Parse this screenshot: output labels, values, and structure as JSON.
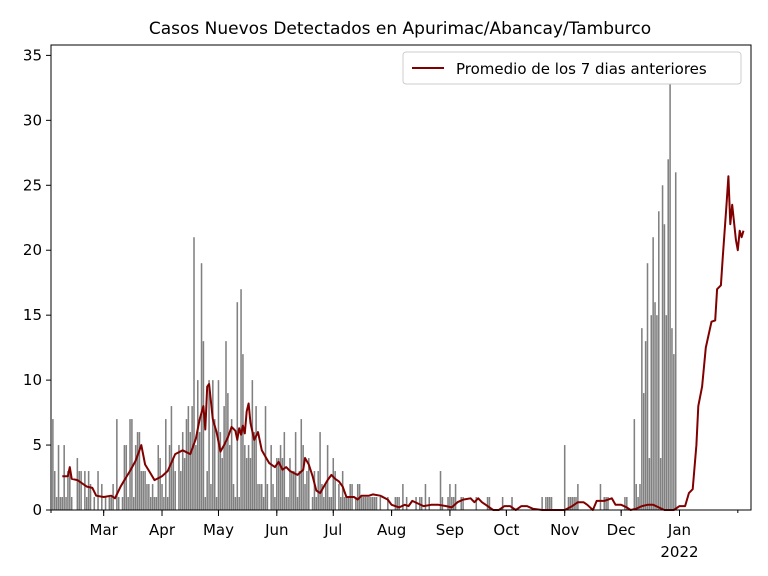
{
  "chart_data": {
    "type": "bar",
    "title": "Casos Nuevos Detectados en Apurimac/Abancay/Tamburco",
    "xlabel": "",
    "ylabel": "",
    "x_range": [
      "2021-02-01",
      "2022-02-08"
    ],
    "ylim": [
      0,
      35.8
    ],
    "y_ticks": [
      0,
      5,
      10,
      15,
      20,
      25,
      30,
      35
    ],
    "x_ticks": [
      {
        "label": "Mar",
        "date": "2021-03-01"
      },
      {
        "label": "Apr",
        "date": "2021-04-01"
      },
      {
        "label": "May",
        "date": "2021-05-01"
      },
      {
        "label": "Jun",
        "date": "2021-06-01"
      },
      {
        "label": "Jul",
        "date": "2021-07-01"
      },
      {
        "label": "Aug",
        "date": "2021-08-01"
      },
      {
        "label": "Sep",
        "date": "2021-09-01"
      },
      {
        "label": "Oct",
        "date": "2021-10-01"
      },
      {
        "label": "Nov",
        "date": "2021-11-01"
      },
      {
        "label": "Dec",
        "date": "2021-12-01"
      },
      {
        "label": "Jan",
        "sublabel": "2022",
        "date": "2022-01-01"
      }
    ],
    "grid": false,
    "legend": {
      "position": "top-right"
    },
    "bar_series": {
      "start_date": "2021-02-02",
      "color": "#808080",
      "values": [
        7,
        3,
        1,
        5,
        1,
        1,
        5,
        1,
        3,
        3,
        1,
        0,
        0,
        4,
        3,
        3,
        0,
        3,
        1,
        3,
        2,
        0,
        1,
        0,
        3,
        0,
        2,
        0,
        1,
        0,
        1,
        1,
        2,
        0,
        7,
        1,
        0,
        1,
        5,
        5,
        1,
        7,
        7,
        1,
        5,
        6,
        6,
        3,
        3,
        3,
        2,
        2,
        1,
        2,
        1,
        1,
        5,
        4,
        2,
        1,
        7,
        1,
        5,
        8,
        4,
        3,
        0,
        5,
        3,
        6,
        4,
        7,
        8,
        6,
        8,
        21,
        5,
        10,
        6,
        19,
        13,
        1,
        3,
        10,
        2,
        10,
        7,
        1,
        10,
        6,
        4,
        8,
        13,
        9,
        5,
        7,
        2,
        1,
        16,
        1,
        17,
        12,
        5,
        4,
        5,
        4,
        10,
        6,
        8,
        2,
        2,
        2,
        1,
        8,
        2,
        0,
        5,
        2,
        1,
        4,
        4,
        5,
        4,
        6,
        1,
        1,
        4,
        3,
        3,
        6,
        1,
        3,
        7,
        5,
        2,
        3,
        4,
        0,
        1,
        3,
        1,
        3,
        6,
        2,
        1,
        2,
        5,
        1,
        1,
        4,
        3,
        0,
        2,
        1,
        3,
        1,
        1,
        1,
        2,
        2,
        0,
        1,
        2,
        2,
        1,
        1,
        1,
        1,
        1,
        1,
        1,
        1,
        1,
        0,
        1,
        0,
        0,
        0,
        1,
        0,
        0,
        0,
        1,
        1,
        1,
        0,
        2,
        0,
        1,
        0,
        0,
        0,
        0,
        1,
        0,
        1,
        1,
        0,
        2,
        0,
        1,
        0,
        0,
        0,
        0,
        0,
        3,
        1,
        0,
        0,
        1,
        2,
        1,
        1,
        2,
        0,
        0,
        1,
        1,
        0,
        0,
        0,
        0,
        0,
        0,
        1,
        0,
        0,
        0,
        0,
        0,
        1,
        1,
        0,
        0,
        0,
        0,
        0,
        0,
        1,
        0,
        0,
        0,
        0,
        1,
        0,
        0,
        0,
        0,
        0,
        0,
        0,
        0,
        0,
        0,
        0,
        0,
        0,
        0,
        0,
        1,
        0,
        1,
        1,
        1,
        1,
        0,
        0,
        0,
        0,
        0,
        0,
        5,
        0,
        1,
        1,
        1,
        1,
        1,
        2,
        0,
        0,
        0,
        0,
        0,
        0,
        0,
        0,
        0,
        0,
        0,
        2,
        0,
        1,
        1,
        1,
        0,
        0,
        0,
        0,
        0,
        0,
        0,
        0,
        1,
        1,
        0,
        0,
        0,
        7,
        2,
        1,
        2,
        14,
        9,
        13,
        19,
        4,
        15,
        21,
        16,
        15,
        23,
        4,
        25,
        22,
        15,
        27,
        34,
        14,
        12,
        26
      ]
    },
    "line_series": {
      "name": "Promedio de los 7 dias anteriores",
      "color": "#800000",
      "points": [
        [
          "2021-02-07",
          2.6
        ],
        [
          "2021-02-10",
          2.6
        ],
        [
          "2021-02-11",
          3.3
        ],
        [
          "2021-02-12",
          2.4
        ],
        [
          "2021-02-15",
          2.3
        ],
        [
          "2021-02-20",
          1.8
        ],
        [
          "2021-02-23",
          1.7
        ],
        [
          "2021-02-25",
          1.1
        ],
        [
          "2021-03-01",
          1.0
        ],
        [
          "2021-03-05",
          1.1
        ],
        [
          "2021-03-07",
          0.9
        ],
        [
          "2021-03-10",
          1.8
        ],
        [
          "2021-03-12",
          2.3
        ],
        [
          "2021-03-15",
          3.0
        ],
        [
          "2021-03-18",
          3.8
        ],
        [
          "2021-03-21",
          5.0
        ],
        [
          "2021-03-23",
          3.5
        ],
        [
          "2021-03-26",
          2.8
        ],
        [
          "2021-03-28",
          2.3
        ],
        [
          "2021-04-01",
          2.6
        ],
        [
          "2021-04-04",
          3.0
        ],
        [
          "2021-04-08",
          4.3
        ],
        [
          "2021-04-12",
          4.6
        ],
        [
          "2021-04-16",
          4.3
        ],
        [
          "2021-04-19",
          5.5
        ],
        [
          "2021-04-21",
          7.0
        ],
        [
          "2021-04-23",
          8.0
        ],
        [
          "2021-04-24",
          6.2
        ],
        [
          "2021-04-25",
          9.5
        ],
        [
          "2021-04-26",
          9.7
        ],
        [
          "2021-04-28",
          7.0
        ],
        [
          "2021-04-30",
          6.0
        ],
        [
          "2021-05-02",
          4.5
        ],
        [
          "2021-05-04",
          5.0
        ],
        [
          "2021-05-06",
          5.6
        ],
        [
          "2021-05-08",
          6.4
        ],
        [
          "2021-05-10",
          6.1
        ],
        [
          "2021-05-11",
          5.4
        ],
        [
          "2021-05-12",
          6.3
        ],
        [
          "2021-05-13",
          5.8
        ],
        [
          "2021-05-14",
          6.5
        ],
        [
          "2021-05-15",
          5.9
        ],
        [
          "2021-05-16",
          7.6
        ],
        [
          "2021-05-17",
          8.2
        ],
        [
          "2021-05-18",
          6.7
        ],
        [
          "2021-05-20",
          5.4
        ],
        [
          "2021-05-22",
          6.0
        ],
        [
          "2021-05-24",
          4.6
        ],
        [
          "2021-05-26",
          4.1
        ],
        [
          "2021-05-28",
          3.6
        ],
        [
          "2021-05-31",
          3.3
        ],
        [
          "2021-06-02",
          3.7
        ],
        [
          "2021-06-04",
          3.1
        ],
        [
          "2021-06-06",
          3.3
        ],
        [
          "2021-06-08",
          3.0
        ],
        [
          "2021-06-12",
          2.7
        ],
        [
          "2021-06-15",
          3.1
        ],
        [
          "2021-06-16",
          4.0
        ],
        [
          "2021-06-18",
          3.5
        ],
        [
          "2021-06-20",
          2.6
        ],
        [
          "2021-06-22",
          1.5
        ],
        [
          "2021-06-24",
          1.3
        ],
        [
          "2021-06-26",
          1.8
        ],
        [
          "2021-06-28",
          2.3
        ],
        [
          "2021-06-30",
          2.7
        ],
        [
          "2021-07-02",
          2.4
        ],
        [
          "2021-07-04",
          2.2
        ],
        [
          "2021-07-06",
          1.8
        ],
        [
          "2021-07-08",
          1.0
        ],
        [
          "2021-07-12",
          1.0
        ],
        [
          "2021-07-14",
          0.8
        ],
        [
          "2021-07-16",
          1.1
        ],
        [
          "2021-07-20",
          1.1
        ],
        [
          "2021-07-22",
          1.2
        ],
        [
          "2021-07-26",
          1.1
        ],
        [
          "2021-07-30",
          0.8
        ],
        [
          "2021-08-01",
          0.4
        ],
        [
          "2021-08-05",
          0.2
        ],
        [
          "2021-08-08",
          0.4
        ],
        [
          "2021-08-10",
          0.3
        ],
        [
          "2021-08-12",
          0.7
        ],
        [
          "2021-08-15",
          0.5
        ],
        [
          "2021-08-18",
          0.3
        ],
        [
          "2021-08-22",
          0.4
        ],
        [
          "2021-08-26",
          0.4
        ],
        [
          "2021-08-30",
          0.3
        ],
        [
          "2021-09-02",
          0.2
        ],
        [
          "2021-09-05",
          0.6
        ],
        [
          "2021-09-08",
          0.8
        ],
        [
          "2021-09-12",
          0.9
        ],
        [
          "2021-09-14",
          0.6
        ],
        [
          "2021-09-16",
          0.9
        ],
        [
          "2021-09-18",
          0.6
        ],
        [
          "2021-09-21",
          0.3
        ],
        [
          "2021-09-24",
          0.0
        ],
        [
          "2021-09-27",
          0.0
        ],
        [
          "2021-09-30",
          0.3
        ],
        [
          "2021-10-03",
          0.3
        ],
        [
          "2021-10-06",
          0.0
        ],
        [
          "2021-10-09",
          0.3
        ],
        [
          "2021-10-12",
          0.3
        ],
        [
          "2021-10-15",
          0.1
        ],
        [
          "2021-10-20",
          0.0
        ],
        [
          "2021-11-01",
          0.0
        ],
        [
          "2021-11-05",
          0.3
        ],
        [
          "2021-11-08",
          0.6
        ],
        [
          "2021-11-11",
          0.6
        ],
        [
          "2021-11-13",
          0.4
        ],
        [
          "2021-11-16",
          0.0
        ],
        [
          "2021-11-18",
          0.7
        ],
        [
          "2021-11-22",
          0.7
        ],
        [
          "2021-11-26",
          0.9
        ],
        [
          "2021-11-28",
          0.4
        ],
        [
          "2021-12-01",
          0.4
        ],
        [
          "2021-12-04",
          0.2
        ],
        [
          "2021-12-06",
          0.0
        ],
        [
          "2021-12-09",
          0.1
        ],
        [
          "2021-12-12",
          0.3
        ],
        [
          "2021-12-15",
          0.4
        ],
        [
          "2021-12-18",
          0.4
        ],
        [
          "2021-12-21",
          0.2
        ],
        [
          "2021-12-24",
          0.0
        ],
        [
          "2021-12-29",
          0.0
        ],
        [
          "2022-01-01",
          0.3
        ],
        [
          "2022-01-04",
          0.3
        ],
        [
          "2022-01-06",
          1.3
        ],
        [
          "2022-01-08",
          1.6
        ],
        [
          "2022-01-10",
          5.0
        ],
        [
          "2022-01-11",
          8.0
        ],
        [
          "2022-01-13",
          9.5
        ],
        [
          "2022-01-15",
          12.5
        ],
        [
          "2022-01-18",
          14.5
        ],
        [
          "2022-01-20",
          14.6
        ],
        [
          "2022-01-21",
          17.0
        ],
        [
          "2022-01-23",
          17.3
        ],
        [
          "2022-01-24",
          19.5
        ],
        [
          "2022-01-26",
          23.5
        ],
        [
          "2022-01-27",
          25.7
        ],
        [
          "2022-01-28",
          22.0
        ],
        [
          "2022-01-29",
          23.5
        ],
        [
          "2022-01-31",
          20.8
        ],
        [
          "2022-02-01",
          20.0
        ],
        [
          "2022-02-02",
          21.5
        ],
        [
          "2022-02-03",
          21.0
        ],
        [
          "2022-02-04",
          21.5
        ]
      ]
    }
  }
}
